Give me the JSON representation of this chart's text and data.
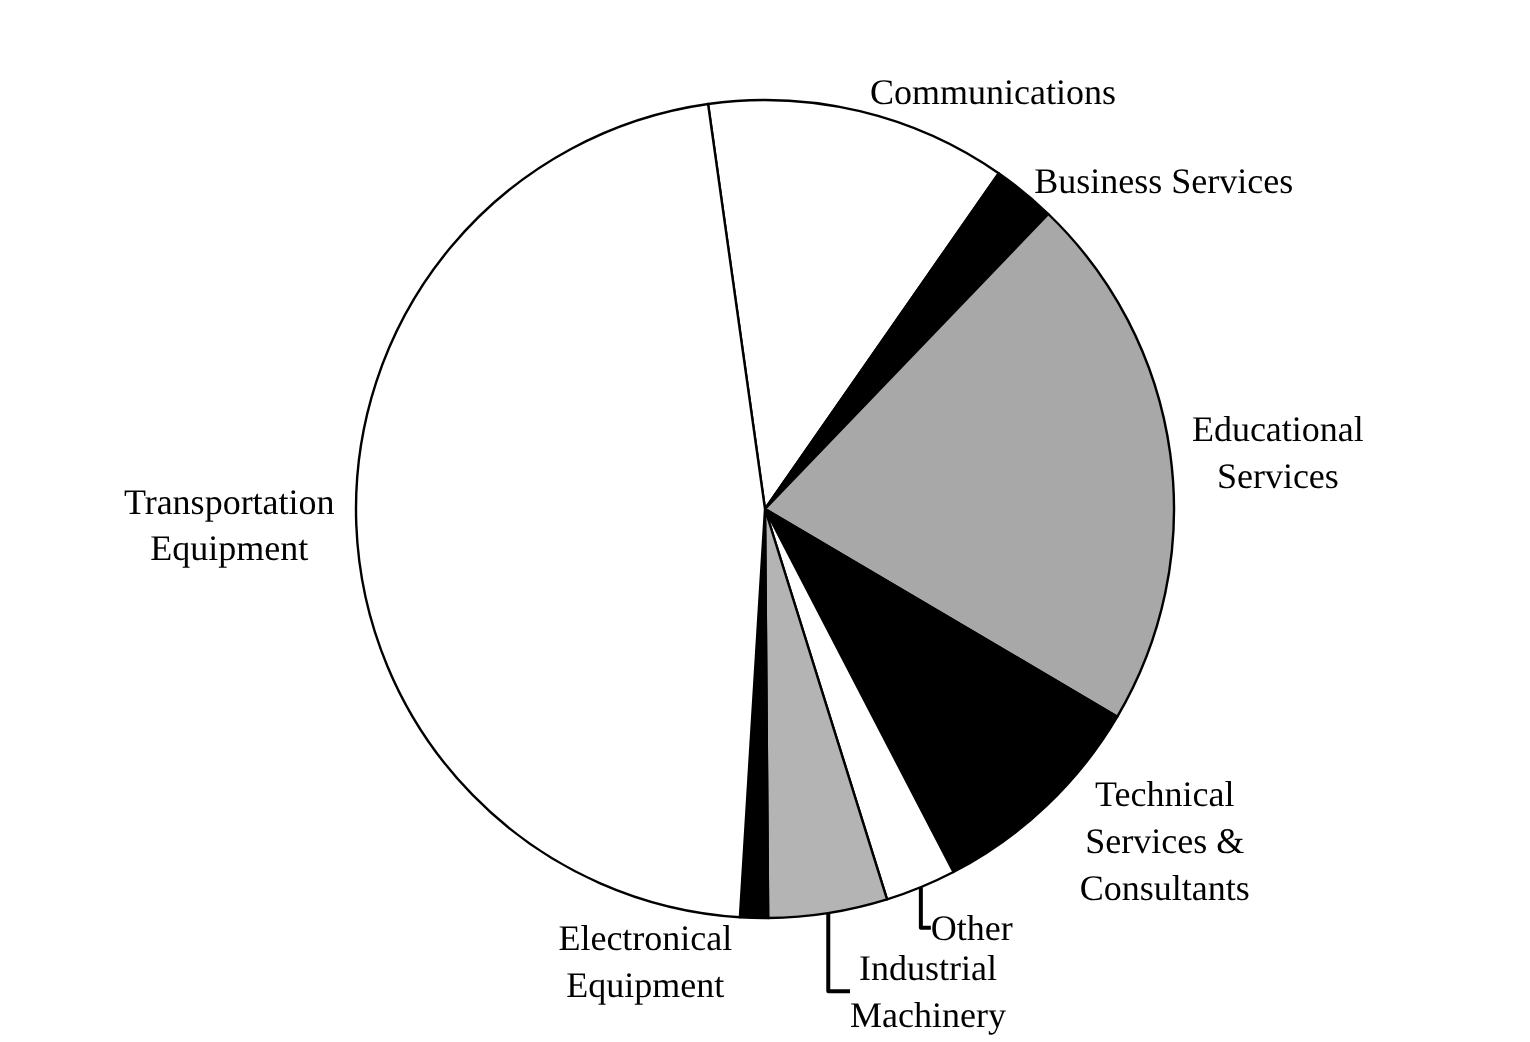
{
  "chart_data": {
    "type": "pie",
    "categories": [
      "Communications",
      "Business Services",
      "Educational\nServices",
      "Technical\nServices &\nConsultants",
      "Other",
      "Industrial\nMachinery",
      "Electronical\nEquipment",
      "Transportation\nEquipment"
    ],
    "values": [
      11.9,
      2.5,
      21.3,
      8.9,
      2.8,
      4.7,
      1.1,
      46.8
    ],
    "colors": [
      "#ffffff",
      "#000000",
      "#a8a8a8",
      "#000000",
      "#ffffff",
      "#b4b4b4",
      "#000000",
      "#ffffff"
    ]
  }
}
